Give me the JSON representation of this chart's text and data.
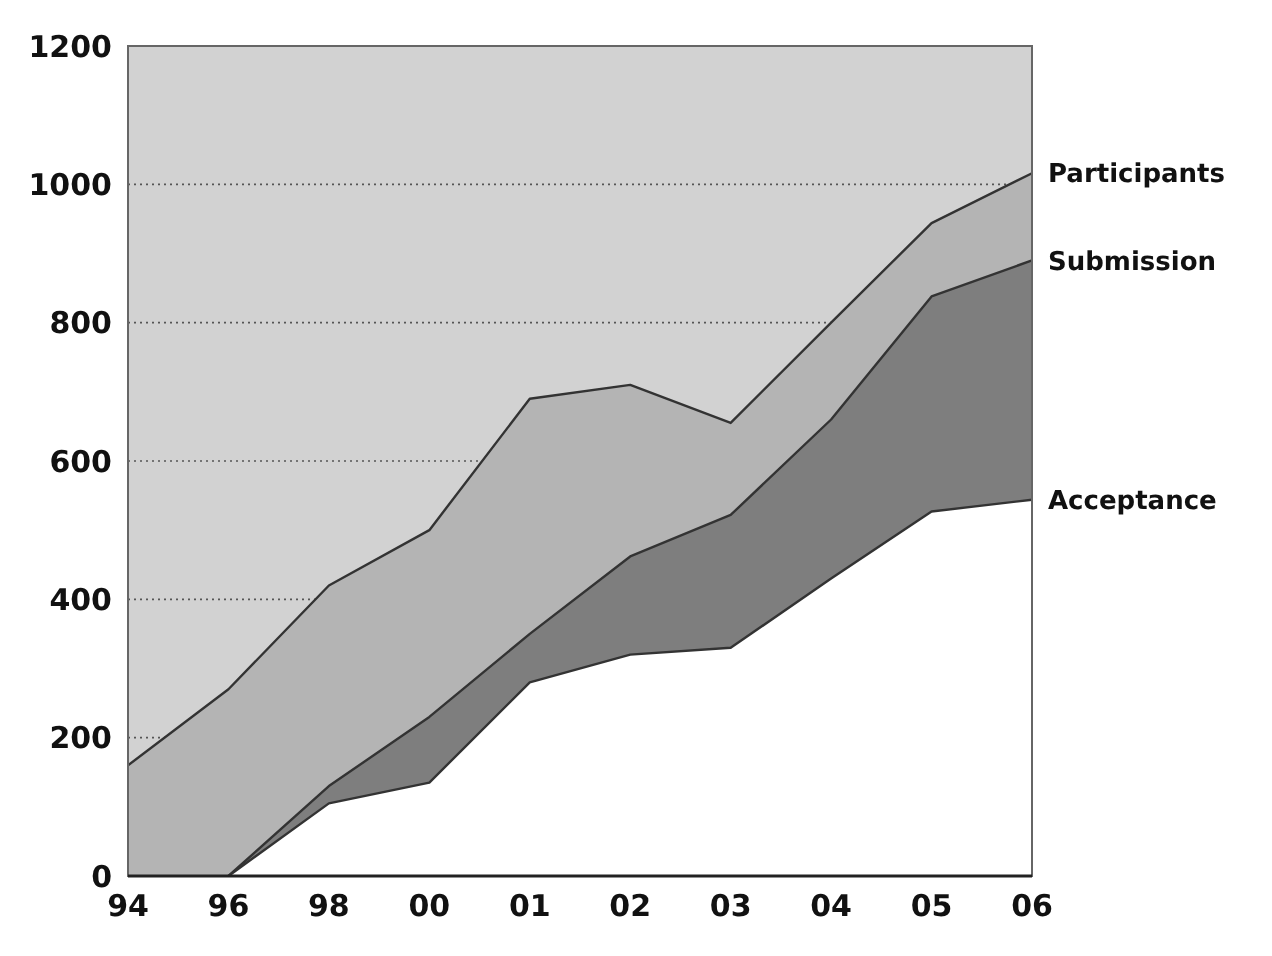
{
  "chart_data": {
    "type": "area",
    "categories": [
      "94",
      "96",
      "98",
      "00",
      "01",
      "02",
      "03",
      "04",
      "05",
      "06"
    ],
    "series": [
      {
        "name": "Participants",
        "color": "#b4b4b4",
        "values": [
          160,
          270,
          420,
          500,
          690,
          710,
          655,
          800,
          944,
          1016
        ]
      },
      {
        "name": "Submission",
        "color": "#7e7e7e",
        "values": [
          null,
          0,
          130,
          230,
          350,
          462,
          522,
          660,
          838,
          890
        ]
      },
      {
        "name": "Acceptance",
        "color": "#ffffff",
        "values": [
          null,
          0,
          105,
          135,
          280,
          320,
          330,
          430,
          527,
          544
        ]
      }
    ],
    "ylim": [
      0,
      1200
    ],
    "yticks": [
      0,
      200,
      400,
      600,
      800,
      1000,
      1200
    ],
    "grid": "y"
  }
}
